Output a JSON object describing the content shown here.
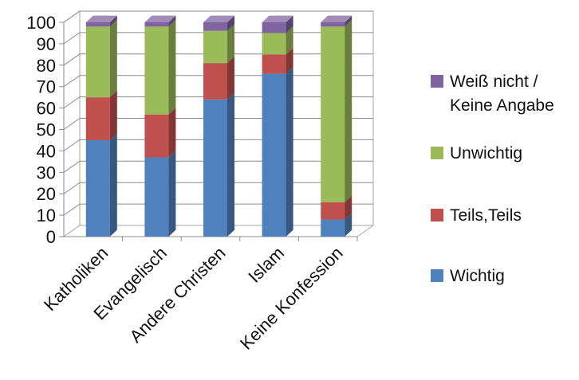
{
  "chart_data": {
    "type": "bar",
    "stacked": true,
    "three_d": true,
    "title": "",
    "xlabel": "",
    "ylabel": "",
    "ylim": [
      0,
      100
    ],
    "yticks": [
      "0",
      "10",
      "20",
      "30",
      "40",
      "50",
      "60",
      "70",
      "80",
      "90",
      "100"
    ],
    "grid": true,
    "legend_position": "right",
    "categories": [
      "Katholiken",
      "Evangelisch",
      "Andere Christen",
      "Islam",
      "Keine Konfession"
    ],
    "series": [
      {
        "name": "Wichtig",
        "color": "#4f81bd",
        "values": [
          45,
          37,
          64,
          76,
          8
        ]
      },
      {
        "name": "Teils,Teils",
        "color": "#c0504d",
        "values": [
          20,
          20,
          17,
          9,
          8
        ]
      },
      {
        "name": "Unwichtig",
        "color": "#9bbb59",
        "values": [
          33,
          41,
          15,
          10,
          82
        ]
      },
      {
        "name": "Weiß nicht /\nKeine Angabe",
        "color": "#8064a2",
        "values": [
          2,
          2,
          4,
          5,
          2
        ]
      }
    ]
  }
}
